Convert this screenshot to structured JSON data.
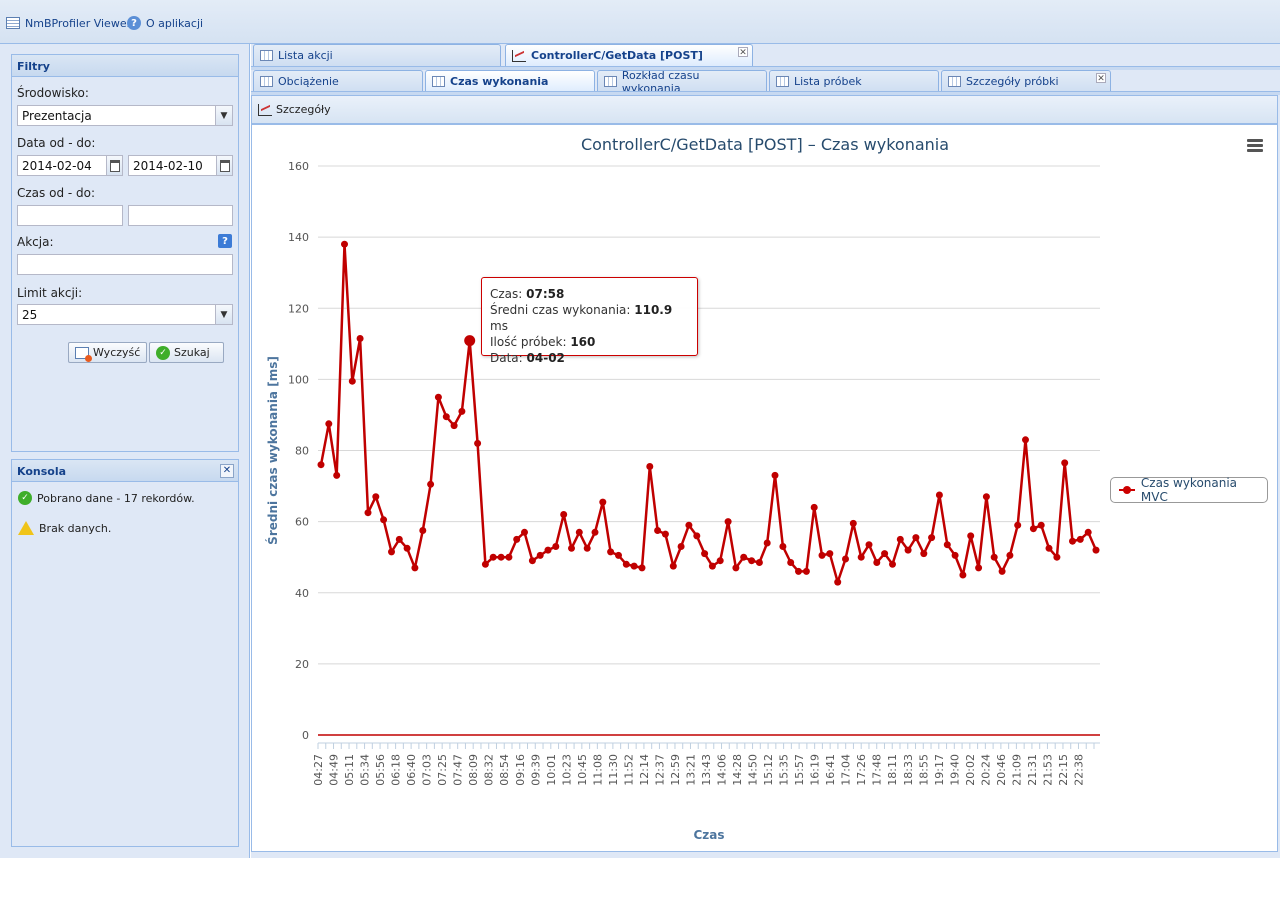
{
  "app": {
    "menu": [
      {
        "label": "NmBProfiler Viewer",
        "icon": "grid-icon"
      },
      {
        "label": "O aplikacji",
        "icon": "help-icon"
      }
    ]
  },
  "filters": {
    "title": "Filtry",
    "environment_label": "Środowisko:",
    "environment_value": "Prezentacja",
    "date_label": "Data od - do:",
    "date_from": "2014-02-04",
    "date_to": "2014-02-10",
    "time_label": "Czas od - do:",
    "time_from": "",
    "time_to": "",
    "action_label": "Akcja:",
    "action_value": "",
    "limit_label": "Limit akcji:",
    "limit_value": "25",
    "clear_label": "Wyczyść",
    "search_label": "Szukaj"
  },
  "console": {
    "title": "Konsola",
    "messages": [
      {
        "type": "success",
        "text": "Pobrano dane - 17 rekordów."
      },
      {
        "type": "warning",
        "text": "Brak danych."
      }
    ]
  },
  "tabs_top": [
    {
      "label": "Lista akcji",
      "active": false,
      "closable": false
    },
    {
      "label": "ControllerC/GetData [POST]",
      "active": true,
      "closable": true
    }
  ],
  "tabs_sub": [
    {
      "label": "Obciążenie",
      "active": false,
      "closable": false
    },
    {
      "label": "Czas wykonania",
      "active": true,
      "closable": false
    },
    {
      "label": "Rozkład czasu wykonania",
      "active": false,
      "closable": false
    },
    {
      "label": "Lista próbek",
      "active": false,
      "closable": false
    },
    {
      "label": "Szczegóły próbki",
      "active": false,
      "closable": true
    }
  ],
  "toolbar": {
    "details_label": "Szczegóły"
  },
  "tooltip": {
    "time_label": "Czas: ",
    "time_value": "07:58",
    "avg_label": "Średni czas wykonania: ",
    "avg_value": "110.9",
    "avg_unit": " ms",
    "count_label": "Ilość próbek: ",
    "count_value": "160",
    "date_label": "Data: ",
    "date_value": "04-02"
  },
  "chart_data": {
    "type": "line",
    "title": "ControllerC/GetData [POST] – Czas wykonania",
    "xlabel": "Czas",
    "ylabel": "Średni czas wykonania [ms]",
    "ylim": [
      0,
      160
    ],
    "yticks": [
      0,
      20,
      40,
      60,
      80,
      100,
      120,
      140,
      160
    ],
    "grid": true,
    "legend_position": "right",
    "color": "#c00000",
    "xtick_labels": [
      "04:27",
      "04:49",
      "05:11",
      "05:34",
      "05:56",
      "06:18",
      "06:40",
      "07:03",
      "07:25",
      "07:47",
      "08:09",
      "08:32",
      "08:54",
      "09:16",
      "09:39",
      "10:01",
      "10:23",
      "10:45",
      "11:08",
      "11:30",
      "11:52",
      "12:14",
      "12:37",
      "12:59",
      "13:21",
      "13:43",
      "14:06",
      "14:28",
      "14:50",
      "15:12",
      "15:35",
      "15:57",
      "16:19",
      "16:41",
      "17:04",
      "17:26",
      "17:48",
      "18:11",
      "18:33",
      "18:55",
      "19:17",
      "19:40",
      "20:02",
      "20:24",
      "20:46",
      "21:09",
      "21:31",
      "21:53",
      "22:15",
      "22:38"
    ],
    "highlight_index": 19,
    "series": [
      {
        "name": "Czas wykonania MVC",
        "values": [
          76,
          87.5,
          73,
          138,
          99.5,
          111.5,
          62.5,
          67,
          60.5,
          51.5,
          55,
          52.5,
          47,
          57.5,
          70.5,
          95,
          89.5,
          87,
          91,
          110.9,
          82,
          48,
          50,
          50,
          50,
          55,
          57,
          49,
          50.5,
          52,
          53,
          62,
          52.5,
          57,
          52.5,
          57,
          65.5,
          51.5,
          50.5,
          48,
          47.5,
          47,
          75.5,
          57.5,
          56.5,
          47.5,
          53,
          59,
          56,
          51,
          47.5,
          49,
          60,
          47,
          50,
          49,
          48.5,
          54,
          73,
          53,
          48.5,
          46,
          46,
          64,
          50.5,
          51,
          43,
          49.5,
          59.5,
          50,
          53.5,
          48.5,
          51,
          48,
          55,
          52,
          55.5,
          51,
          55.5,
          67.5,
          53.5,
          50.5,
          45,
          56,
          47,
          67,
          50,
          46,
          50.5,
          59,
          83,
          58,
          59,
          52.5,
          50,
          76.5,
          54.5,
          55,
          57,
          52
        ]
      }
    ]
  }
}
